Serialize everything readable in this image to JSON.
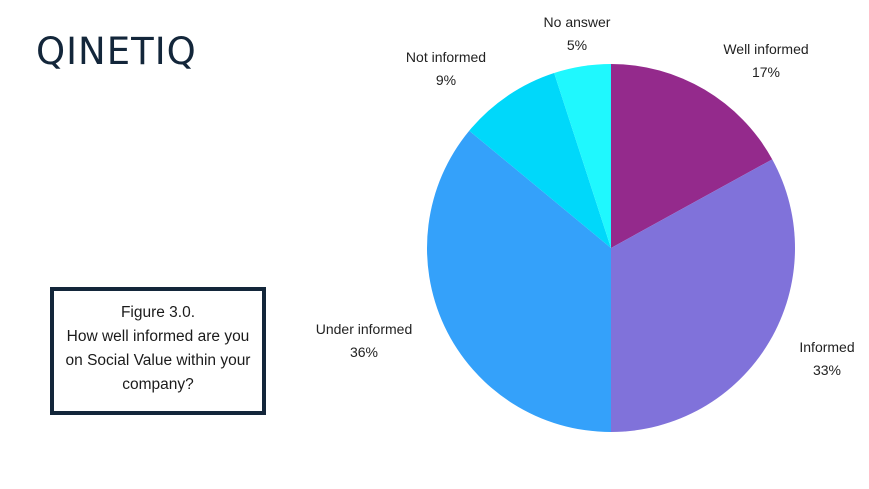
{
  "logo": "QINETIQ",
  "caption": {
    "title": "Figure 3.0.",
    "text": "How well informed are you on Social Value within your company?"
  },
  "chart_data": {
    "type": "pie",
    "slices": [
      {
        "label": "Well informed",
        "value": 17,
        "display": "17%",
        "color": "#942a8c"
      },
      {
        "label": "Informed",
        "value": 33,
        "display": "33%",
        "color": "#8072da"
      },
      {
        "label": "Under informed",
        "value": 36,
        "display": "36%",
        "color": "#34a1fa"
      },
      {
        "label": "Not informed",
        "value": 9,
        "display": "9%",
        "color": "#00d8fa"
      },
      {
        "label": "No answer",
        "value": 5,
        "display": "5%",
        "color": "#1ff8fe"
      }
    ],
    "start_angle": "12 o'clock",
    "direction": "clockwise"
  }
}
